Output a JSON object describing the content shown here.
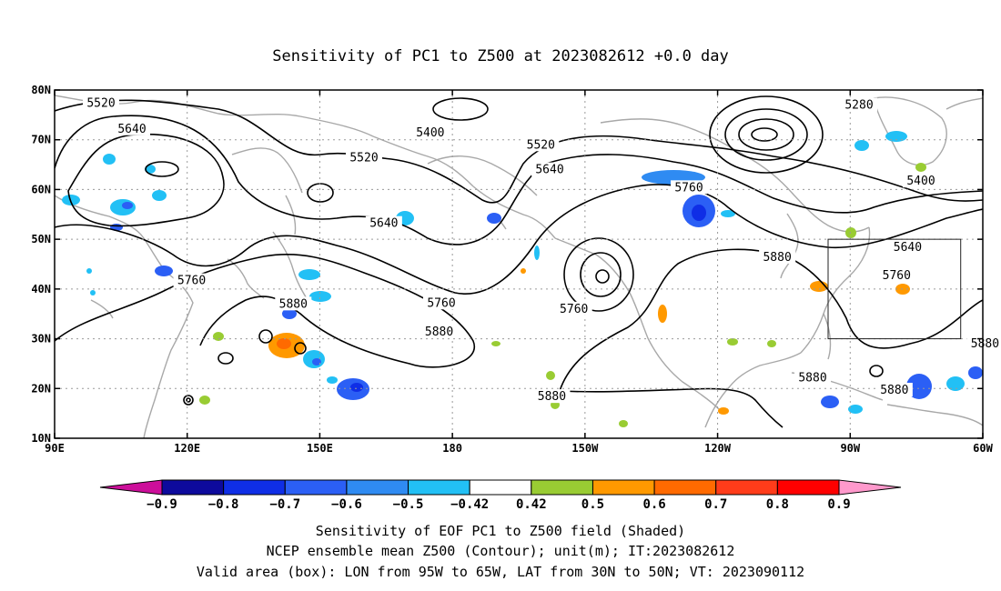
{
  "title": "Sensitivity of PC1 to Z500 at 2023082612 +0.0 day",
  "map": {
    "lon_range": [
      90,
      300
    ],
    "lat_range": [
      10,
      80
    ],
    "lat_ticks": [
      {
        "value": 80,
        "label": "80N"
      },
      {
        "value": 70,
        "label": "70N"
      },
      {
        "value": 60,
        "label": "60N"
      },
      {
        "value": 50,
        "label": "50N"
      },
      {
        "value": 40,
        "label": "40N"
      },
      {
        "value": 30,
        "label": "30N"
      },
      {
        "value": 20,
        "label": "20N"
      },
      {
        "value": 10,
        "label": "10N"
      }
    ],
    "lon_ticks": [
      {
        "value": 90,
        "label": "90E"
      },
      {
        "value": 120,
        "label": "120E"
      },
      {
        "value": 150,
        "label": "150E"
      },
      {
        "value": 180,
        "label": "180"
      },
      {
        "value": 210,
        "label": "150W"
      },
      {
        "value": 240,
        "label": "120W"
      },
      {
        "value": 270,
        "label": "90W"
      },
      {
        "value": 300,
        "label": "60W"
      }
    ],
    "valid_box": {
      "lon": [
        265,
        295
      ],
      "lat": [
        30,
        50
      ]
    },
    "contour_labels": [
      {
        "text": "5520",
        "lon": 100.5,
        "lat": 77.2
      },
      {
        "text": "5640",
        "lon": 107.5,
        "lat": 72.0
      },
      {
        "text": "5400",
        "lon": 175.0,
        "lat": 71.2
      },
      {
        "text": "5280",
        "lon": 272.0,
        "lat": 76.8
      },
      {
        "text": "5520",
        "lon": 200.0,
        "lat": 68.8
      },
      {
        "text": "5520",
        "lon": 160.0,
        "lat": 66.2
      },
      {
        "text": "5640",
        "lon": 202.0,
        "lat": 63.8
      },
      {
        "text": "5400",
        "lon": 286.0,
        "lat": 61.5
      },
      {
        "text": "5760",
        "lon": 233.5,
        "lat": 60.2
      },
      {
        "text": "5640",
        "lon": 164.5,
        "lat": 53.0
      },
      {
        "text": "5640",
        "lon": 283.0,
        "lat": 48.2
      },
      {
        "text": "5880",
        "lon": 253.5,
        "lat": 46.2
      },
      {
        "text": "5760",
        "lon": 280.5,
        "lat": 42.5
      },
      {
        "text": "5760",
        "lon": 121.0,
        "lat": 41.5
      },
      {
        "text": "5880",
        "lon": 144.0,
        "lat": 36.8
      },
      {
        "text": "5760",
        "lon": 177.5,
        "lat": 37.0
      },
      {
        "text": "5760",
        "lon": 207.5,
        "lat": 35.8
      },
      {
        "text": "5880",
        "lon": 177.0,
        "lat": 31.2
      },
      {
        "text": "5880",
        "lon": 300.5,
        "lat": 28.8
      },
      {
        "text": "5880",
        "lon": 261.5,
        "lat": 22.0
      },
      {
        "text": "5880",
        "lon": 280.0,
        "lat": 19.5
      },
      {
        "text": "5880",
        "lon": 202.5,
        "lat": 18.2
      }
    ]
  },
  "colorbar": {
    "colors": [
      "#cc0f9a",
      "#0d0a9c",
      "#0f2ee6",
      "#2b5ff5",
      "#2f8bf2",
      "#22c0f5",
      "#ffffff",
      "#99cc33",
      "#ff9900",
      "#ff6a00",
      "#ff3c1a",
      "#ff0000",
      "#ff99cc"
    ],
    "labels": [
      "-0.9",
      "-0.8",
      "-0.7",
      "-0.6",
      "-0.5",
      "-0.42",
      "0.42",
      "0.5",
      "0.6",
      "0.7",
      "0.8",
      "0.9"
    ]
  },
  "caption": {
    "line1": "Sensitivity of EOF PC1 to Z500 field (Shaded)",
    "line2": "NCEP ensemble mean Z500 (Contour); unit(m); IT:2023082612",
    "line3": "Valid area (box): LON from 95W to 65W, LAT from 30N to 50N; VT: 2023090112"
  }
}
